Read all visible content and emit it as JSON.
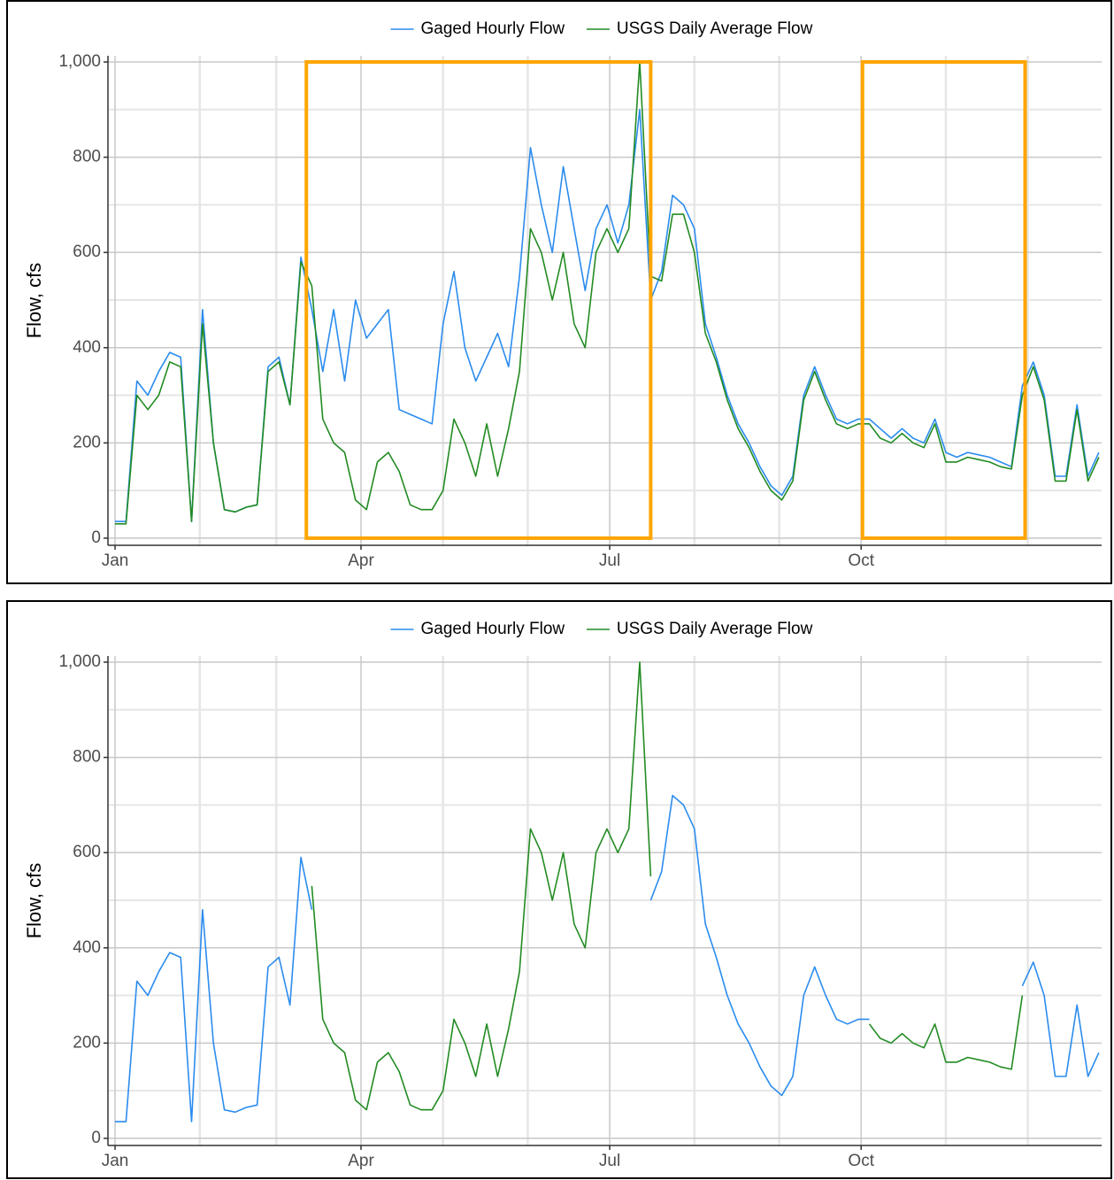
{
  "chart_data": [
    {
      "type": "line",
      "legend": "top",
      "grid": true,
      "y_label": "Flow, cfs",
      "xlim": [
        -2.6,
        361
      ],
      "ylim": [
        -15,
        1013
      ],
      "xticks": [
        {
          "value": 0,
          "label": "Jan"
        },
        {
          "value": 90,
          "label": "Apr"
        },
        {
          "value": 181,
          "label": "Jul"
        },
        {
          "value": 273,
          "label": "Oct"
        }
      ],
      "xminorticks": [
        31,
        59,
        120,
        151,
        212,
        243,
        304,
        334
      ],
      "yticks": [
        0,
        200,
        400,
        600,
        800,
        {
          "value": 1000,
          "label": "1,000"
        }
      ],
      "yminorticks": [
        100,
        300,
        500,
        700,
        900
      ],
      "highlight_color": "#ffa500",
      "highlights": [
        {
          "x": [
            70,
            196
          ],
          "y": [
            0,
            1000
          ]
        },
        {
          "x": [
            273.5,
            333
          ],
          "y": [
            0,
            1000
          ]
        }
      ],
      "x": [
        0,
        4,
        8,
        12,
        16,
        20,
        24,
        28,
        32,
        36,
        40,
        44,
        48,
        52,
        56,
        60,
        64,
        68,
        72,
        76,
        80,
        84,
        88,
        92,
        96,
        100,
        104,
        108,
        112,
        116,
        120,
        124,
        128,
        132,
        136,
        140,
        144,
        148,
        152,
        156,
        160,
        164,
        168,
        172,
        176,
        180,
        184,
        188,
        192,
        196,
        200,
        204,
        208,
        212,
        216,
        220,
        224,
        228,
        232,
        236,
        240,
        244,
        248,
        252,
        256,
        260,
        264,
        268,
        272,
        276,
        280,
        284,
        288,
        292,
        296,
        300,
        304,
        308,
        312,
        316,
        320,
        324,
        328,
        332,
        336,
        340,
        344,
        348,
        352,
        356,
        360
      ],
      "series": [
        {
          "name": "Gaged Hourly Flow",
          "color": "#2b8cee",
          "values": [
            35,
            35,
            330,
            300,
            350,
            390,
            380,
            35,
            480,
            200,
            60,
            55,
            65,
            70,
            360,
            380,
            280,
            590,
            480,
            350,
            480,
            330,
            500,
            420,
            450,
            480,
            270,
            260,
            250,
            240,
            450,
            560,
            400,
            330,
            380,
            430,
            360,
            550,
            820,
            700,
            600,
            780,
            650,
            520,
            650,
            700,
            620,
            700,
            900,
            500,
            560,
            720,
            700,
            650,
            450,
            380,
            300,
            240,
            200,
            150,
            110,
            90,
            130,
            300,
            360,
            300,
            250,
            240,
            250,
            250,
            230,
            210,
            230,
            210,
            200,
            250,
            180,
            170,
            180,
            175,
            170,
            160,
            150,
            320,
            370,
            300,
            130,
            130,
            280,
            130,
            180
          ]
        },
        {
          "name": "USGS Daily Average Flow",
          "color": "#228b22",
          "values": [
            30,
            30,
            300,
            270,
            300,
            370,
            360,
            35,
            450,
            200,
            60,
            55,
            65,
            70,
            350,
            370,
            280,
            580,
            530,
            250,
            200,
            180,
            80,
            60,
            160,
            180,
            140,
            70,
            60,
            60,
            100,
            250,
            200,
            130,
            240,
            130,
            230,
            350,
            650,
            600,
            500,
            600,
            450,
            400,
            600,
            650,
            600,
            650,
            1000,
            550,
            540,
            680,
            680,
            600,
            430,
            370,
            290,
            230,
            190,
            140,
            100,
            80,
            120,
            290,
            350,
            290,
            240,
            230,
            240,
            240,
            210,
            200,
            220,
            200,
            190,
            240,
            160,
            160,
            170,
            165,
            160,
            150,
            145,
            300,
            360,
            290,
            120,
            120,
            270,
            120,
            170
          ]
        }
      ]
    },
    {
      "type": "line",
      "legend": "top",
      "grid": true,
      "y_label": "Flow, cfs",
      "xlim": [
        -2.6,
        361
      ],
      "ylim": [
        -15,
        1013
      ],
      "xticks": [
        {
          "value": 0,
          "label": "Jan"
        },
        {
          "value": 90,
          "label": "Apr"
        },
        {
          "value": 181,
          "label": "Jul"
        },
        {
          "value": 273,
          "label": "Oct"
        }
      ],
      "xminorticks": [
        31,
        59,
        120,
        151,
        212,
        243,
        304,
        334
      ],
      "yticks": [
        0,
        200,
        400,
        600,
        800,
        {
          "value": 1000,
          "label": "1,000"
        }
      ],
      "yminorticks": [
        100,
        300,
        500,
        700,
        900
      ],
      "x": [
        0,
        4,
        8,
        12,
        16,
        20,
        24,
        28,
        32,
        36,
        40,
        44,
        48,
        52,
        56,
        60,
        64,
        68,
        72,
        76,
        80,
        84,
        88,
        92,
        96,
        100,
        104,
        108,
        112,
        116,
        120,
        124,
        128,
        132,
        136,
        140,
        144,
        148,
        152,
        156,
        160,
        164,
        168,
        172,
        176,
        180,
        184,
        188,
        192,
        196,
        200,
        204,
        208,
        212,
        216,
        220,
        224,
        228,
        232,
        236,
        240,
        244,
        248,
        252,
        256,
        260,
        264,
        268,
        272,
        276,
        280,
        284,
        288,
        292,
        296,
        300,
        304,
        308,
        312,
        316,
        320,
        324,
        328,
        332,
        336,
        340,
        344,
        348,
        352,
        356,
        360
      ],
      "series": [
        {
          "name": "Gaged Hourly Flow",
          "color": "#2b8cee",
          "values": [
            35,
            35,
            330,
            300,
            350,
            390,
            380,
            35,
            480,
            200,
            60,
            55,
            65,
            70,
            360,
            380,
            280,
            590,
            480,
            null,
            null,
            null,
            null,
            null,
            null,
            null,
            null,
            null,
            null,
            null,
            null,
            null,
            null,
            null,
            null,
            null,
            null,
            null,
            null,
            null,
            null,
            null,
            null,
            null,
            null,
            null,
            null,
            null,
            null,
            500,
            560,
            720,
            700,
            650,
            450,
            380,
            300,
            240,
            200,
            150,
            110,
            90,
            130,
            300,
            360,
            300,
            250,
            240,
            250,
            250,
            null,
            null,
            null,
            null,
            null,
            null,
            null,
            null,
            null,
            null,
            null,
            null,
            null,
            320,
            370,
            300,
            130,
            130,
            280,
            130,
            180
          ]
        },
        {
          "name": "USGS Daily Average Flow",
          "color": "#228b22",
          "values": [
            null,
            null,
            null,
            null,
            null,
            null,
            null,
            null,
            null,
            null,
            null,
            null,
            null,
            null,
            null,
            null,
            null,
            null,
            530,
            250,
            200,
            180,
            80,
            60,
            160,
            180,
            140,
            70,
            60,
            60,
            100,
            250,
            200,
            130,
            240,
            130,
            230,
            350,
            650,
            600,
            500,
            600,
            450,
            400,
            600,
            650,
            600,
            650,
            1000,
            550,
            null,
            null,
            null,
            null,
            null,
            null,
            null,
            null,
            null,
            null,
            null,
            null,
            null,
            null,
            null,
            null,
            null,
            null,
            null,
            240,
            210,
            200,
            220,
            200,
            190,
            240,
            160,
            160,
            170,
            165,
            160,
            150,
            145,
            300,
            null,
            null,
            null,
            null,
            null,
            null,
            null
          ]
        }
      ]
    }
  ]
}
